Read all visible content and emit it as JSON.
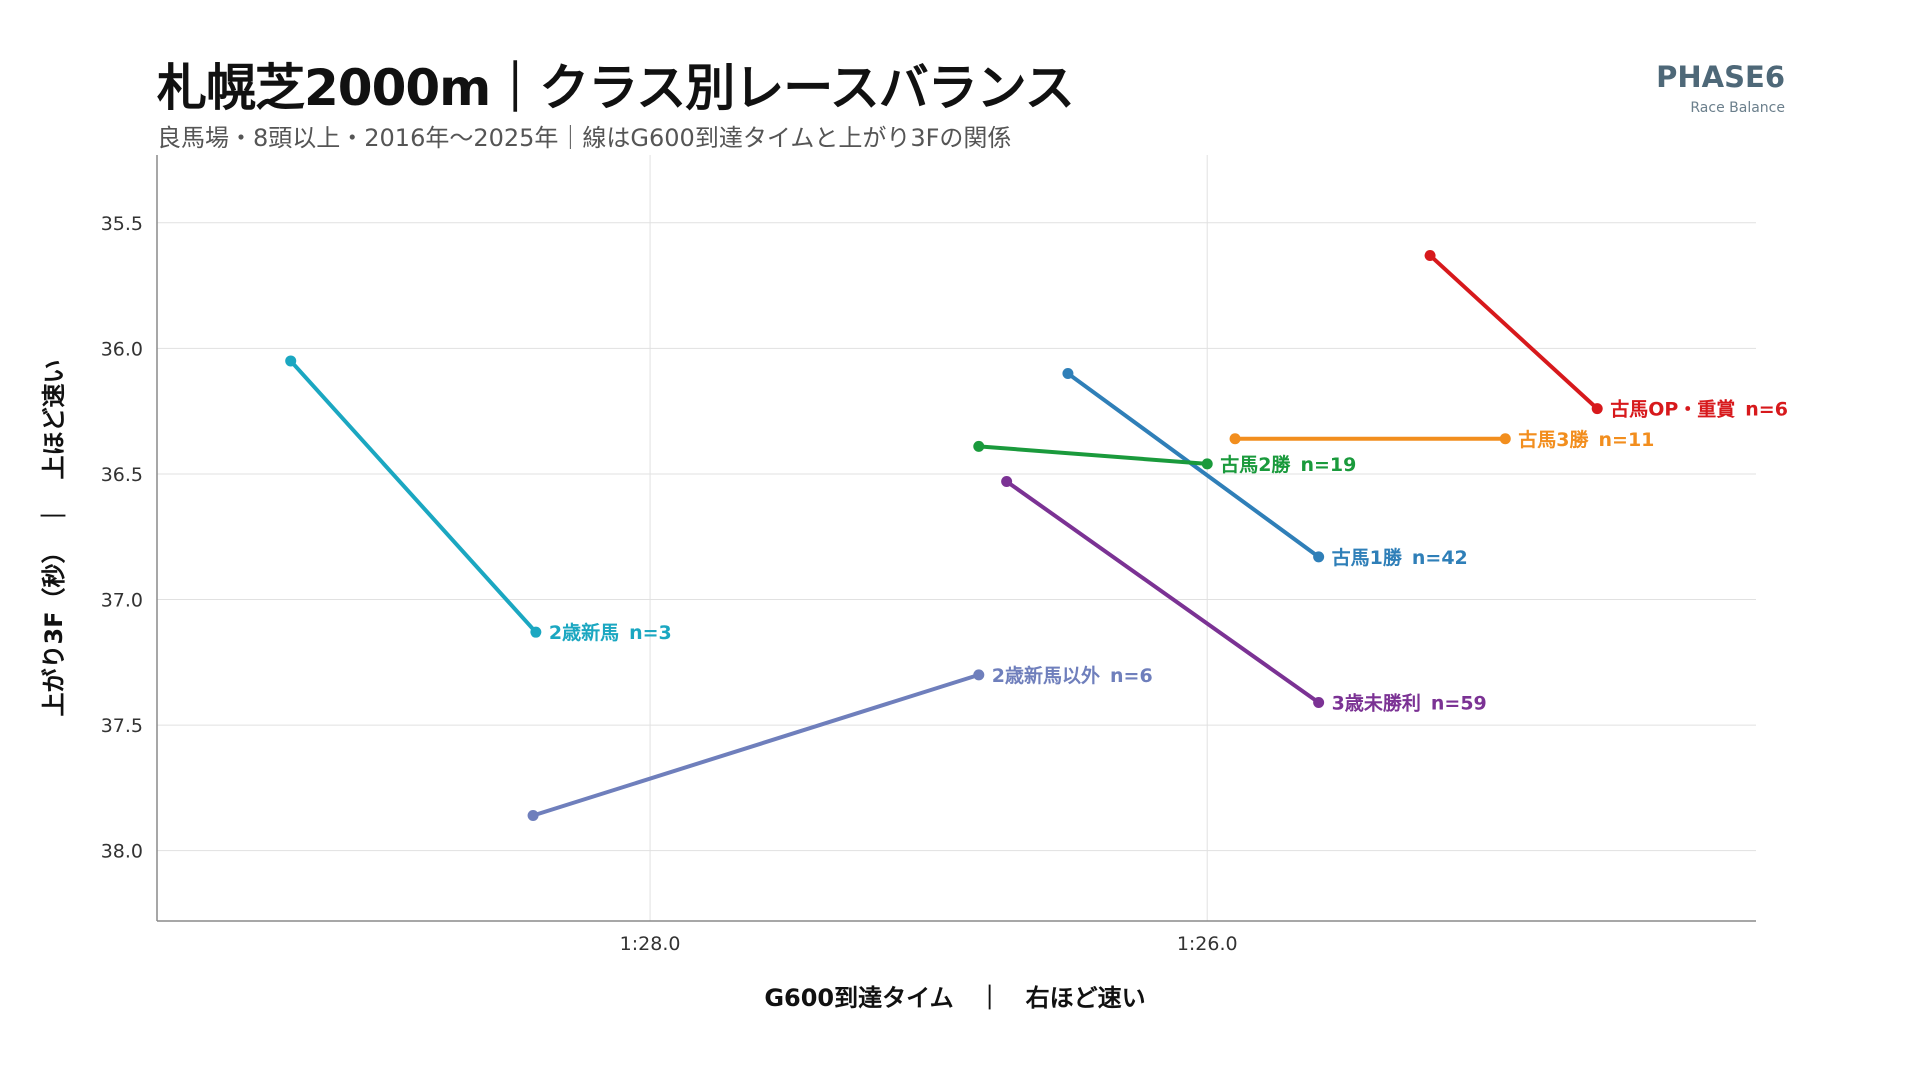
{
  "header": {
    "title": "札幌芝2000m｜クラス別レースバランス",
    "subtitle": "良馬場・8頭以上・2016年〜2025年｜線はG600到達タイムと上がり3Fの関係",
    "brand_name": "PHASE6",
    "brand_sub": "Race Balance"
  },
  "chart_data": {
    "type": "line",
    "xlabel": "G600到達タイム　｜　右ほど速い",
    "ylabel": "上がり3F（秒）　｜　上ほど速い",
    "x_unit": "seconds (G600 arrival time, axis reversed: smaller = right)",
    "x_reversed": true,
    "y_reversed": true,
    "xlim": [
      89.77,
      84.03
    ],
    "ylim": [
      35.23,
      38.28
    ],
    "x_ticks": [
      {
        "value": 88.0,
        "label": "1:28.0"
      },
      {
        "value": 86.0,
        "label": "1:26.0"
      }
    ],
    "y_ticks": [
      {
        "value": 35.5,
        "label": "35.5"
      },
      {
        "value": 36.0,
        "label": "36.0"
      },
      {
        "value": 36.5,
        "label": "36.5"
      },
      {
        "value": 37.0,
        "label": "37.0"
      },
      {
        "value": 37.5,
        "label": "37.5"
      },
      {
        "value": 38.0,
        "label": "38.0"
      }
    ],
    "grid": true,
    "legend": "labels at line end",
    "series": [
      {
        "name": "2歳新馬",
        "n_label": "n=3",
        "color": "#1ba7c1",
        "points": [
          [
            89.29,
            36.05
          ],
          [
            88.41,
            37.13
          ]
        ]
      },
      {
        "name": "2歳新馬以外",
        "n_label": "n=6",
        "color": "#6f7fbc",
        "points": [
          [
            88.42,
            37.86
          ],
          [
            86.82,
            37.3
          ]
        ]
      },
      {
        "name": "3歳未勝利",
        "n_label": "n=59",
        "color": "#7b3294",
        "points": [
          [
            86.72,
            36.53
          ],
          [
            85.6,
            37.41
          ]
        ]
      },
      {
        "name": "古馬1勝",
        "n_label": "n=42",
        "color": "#2f7fb8",
        "points": [
          [
            86.5,
            36.1
          ],
          [
            85.6,
            36.83
          ]
        ]
      },
      {
        "name": "古馬2勝",
        "n_label": "n=19",
        "color": "#1a9a3c",
        "points": [
          [
            86.82,
            36.39
          ],
          [
            86.0,
            36.46
          ]
        ]
      },
      {
        "name": "古馬3勝",
        "n_label": "n=11",
        "color": "#f28e1e",
        "points": [
          [
            85.9,
            36.36
          ],
          [
            84.93,
            36.36
          ]
        ]
      },
      {
        "name": "古馬OP・重賞",
        "n_label": "n=6",
        "color": "#d7191c",
        "points": [
          [
            85.2,
            35.63
          ],
          [
            84.6,
            36.24
          ]
        ]
      }
    ]
  }
}
